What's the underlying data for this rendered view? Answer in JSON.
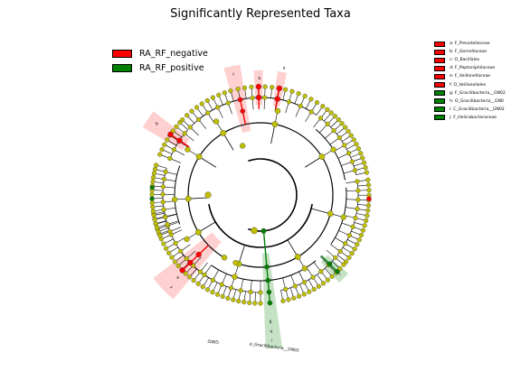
{
  "title": "Significantly Represented Taxa",
  "legend": [
    {
      "label": "RA_RF_negative",
      "color": "#ff0000"
    },
    {
      "label": "RA_RF_positive",
      "color": "#008000"
    }
  ],
  "taxa_legend": [
    {
      "letter": "a",
      "label": "a: F_Prevotellaceae",
      "color": "#ff0000"
    },
    {
      "letter": "b",
      "label": "b: F_Gemellaceae",
      "color": "#ff0000"
    },
    {
      "letter": "c",
      "label": "c: O_Bacillales",
      "color": "#ff0000"
    },
    {
      "letter": "d",
      "label": "d: F_Peptoniphilaceae",
      "color": "#ff0000"
    },
    {
      "letter": "e",
      "label": "e: F_Veillonellaceae",
      "color": "#ff0000"
    },
    {
      "letter": "f",
      "label": "f: O_Veillonellales",
      "color": "#ff0000"
    },
    {
      "letter": "g",
      "label": "g: F_Gracilibacteria__GN02",
      "color": "#008000"
    },
    {
      "letter": "h",
      "label": "h: O_Gracilibacteria__GN0",
      "color": "#008000"
    },
    {
      "letter": "i",
      "label": "i: C_Gracilibacteria__GN02",
      "color": "#008000"
    },
    {
      "letter": "j",
      "label": "j: F_Helicobacteraceae",
      "color": "#008000"
    }
  ],
  "clade_labels": {
    "phylum": "p_Gracilibacteria__GN02",
    "phylum_short": "GN02"
  },
  "colors": {
    "node": "#bfbf00",
    "negative": "#ff0000",
    "positive": "#008000",
    "negative_shade": "#ff9999",
    "positive_shade": "#80c080"
  }
}
